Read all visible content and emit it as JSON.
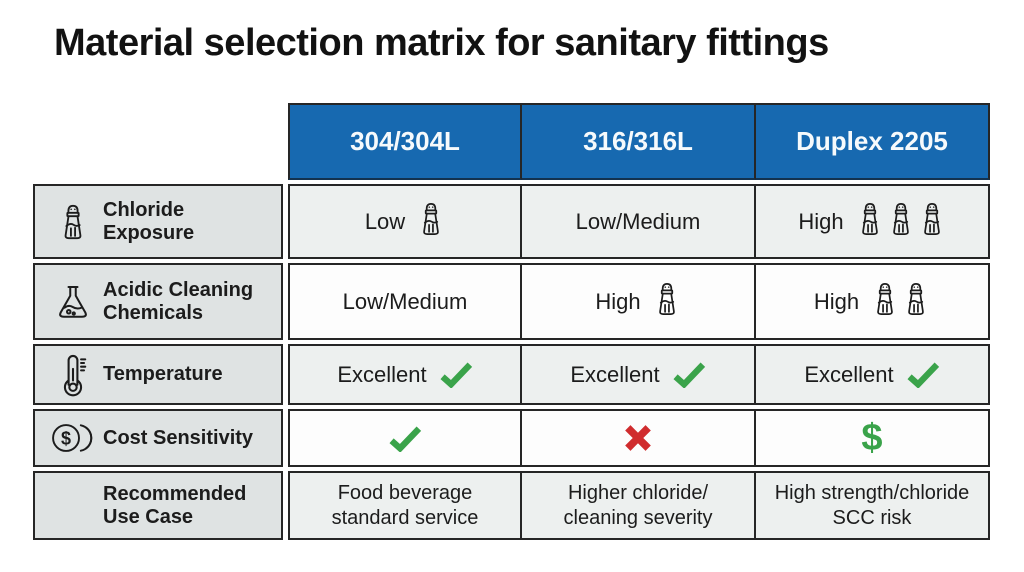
{
  "colors": {
    "page_bg": "#ffffff",
    "header_bg": "#1769b0",
    "header_text": "#f6fafc",
    "label_bg": "#dfe3e3",
    "row_light_bg": "#edf0ef",
    "row_white_bg": "#fdfdfd",
    "border": "#262626",
    "ink": "#1c1c1c",
    "check_green": "#3aa34a",
    "cross_red": "#d02c2e",
    "dollar_green": "#3aa34a"
  },
  "chart_data": {
    "type": "table",
    "title": "Material selection matrix for sanitary fittings",
    "columns": [
      "304/304L",
      "316/316L",
      "Duplex 2205"
    ],
    "rows": [
      {
        "id": "chloride-exposure",
        "icon": "salt-shaker",
        "label": "Chloride Exposure",
        "label_lines": [
          "Chloride",
          "Exposure"
        ],
        "cells": [
          {
            "text": "Low",
            "shakers": 1
          },
          {
            "text": "Low/Medium",
            "shakers": 0
          },
          {
            "text": "High",
            "shakers": 3
          }
        ]
      },
      {
        "id": "acidic-cleaning-chemicals",
        "icon": "flask",
        "label": "Acidic Cleaning Chemicals",
        "label_lines": [
          "Acidic Cleaning",
          "Chemicals"
        ],
        "cells": [
          {
            "text": "Low/Medium",
            "shakers": 0
          },
          {
            "text": "High",
            "shakers": 1
          },
          {
            "text": "High",
            "shakers": 2
          }
        ]
      },
      {
        "id": "temperature",
        "icon": "thermometer",
        "label": "Temperature",
        "label_lines": [
          "Temperature"
        ],
        "cells": [
          {
            "text": "Excellent",
            "symbol": "check"
          },
          {
            "text": "Excellent",
            "symbol": "check"
          },
          {
            "text": "Excellent",
            "symbol": "check"
          }
        ]
      },
      {
        "id": "cost-sensitivity",
        "icon": "coins",
        "label": "Cost Sensitivity",
        "label_lines": [
          "Cost Sensitivity"
        ],
        "cells": [
          {
            "symbol": "check"
          },
          {
            "symbol": "cross"
          },
          {
            "symbol": "dollar",
            "char": "$"
          }
        ]
      },
      {
        "id": "recommended-use-case",
        "icon": null,
        "label": "Recommended Use Case",
        "label_lines": [
          "Recommended",
          "Use Case"
        ],
        "cells": [
          {
            "lines": [
              "Food beverage",
              "standard service"
            ]
          },
          {
            "lines": [
              "Higher chloride/",
              "cleaning severity"
            ]
          },
          {
            "lines": [
              "High strength/chloride",
              "SCC risk"
            ]
          }
        ]
      }
    ]
  }
}
